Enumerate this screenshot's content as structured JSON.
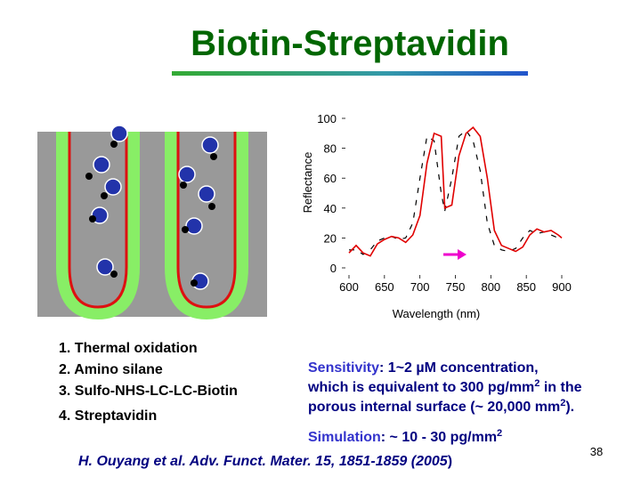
{
  "title": "Biotin-Streptavidin",
  "steps": [
    "1. Thermal oxidation",
    "2. Amino silane",
    "3. Sulfo-NHS-LC-LC-Biotin",
    "4. Streptavidin"
  ],
  "sensitivity": {
    "label": "Sensitivity",
    "line1": ": 1~2 µM concentration,",
    "line2": "which is equivalent to 300 pg/mm",
    "sup1": "2",
    "line2_end": " in the",
    "line3": "porous internal surface (~ 20,000 mm",
    "sup2": "2",
    "line3_end": ")."
  },
  "simulation": {
    "label": "Simulation",
    "text": ":  ~ 10 - 30 pg/mm",
    "sup": "2"
  },
  "citation": {
    "text": "H. Ouyang et al. Adv. Funct. Mater. 15, 1851-1859 (2005",
    "end": ")"
  },
  "page_number": "38",
  "chart_data": {
    "type": "line",
    "x_label": "Wavelength (nm)",
    "y_label": "Reflectance",
    "x": [
      600,
      610,
      620,
      630,
      640,
      650,
      660,
      670,
      680,
      690,
      700,
      710,
      720,
      730,
      735,
      745,
      755,
      765,
      775,
      785,
      795,
      805,
      815,
      825,
      835,
      845,
      855,
      865,
      875,
      885,
      895,
      900
    ],
    "series": [
      {
        "color": "#e00000",
        "values": [
          10,
          15,
          10,
          8,
          16,
          19,
          21,
          20,
          17,
          22,
          35,
          70,
          90,
          88,
          40,
          42,
          75,
          90,
          94,
          88,
          60,
          25,
          15,
          13,
          11,
          14,
          22,
          26,
          24,
          25,
          22,
          20
        ]
      },
      {
        "color": "#000000",
        "values": [
          12,
          12,
          9,
          12,
          18,
          20,
          21,
          19,
          20,
          30,
          60,
          88,
          85,
          50,
          38,
          60,
          88,
          92,
          85,
          65,
          30,
          15,
          12,
          11,
          13,
          20,
          25,
          23,
          24,
          22,
          20,
          18
        ]
      }
    ],
    "xlim": [
      600,
      900
    ],
    "xticks": [
      600,
      650,
      700,
      750,
      800,
      850,
      900
    ],
    "ylim": [
      0,
      100
    ],
    "yticks": [
      0,
      20,
      40,
      60,
      80,
      100
    ]
  }
}
